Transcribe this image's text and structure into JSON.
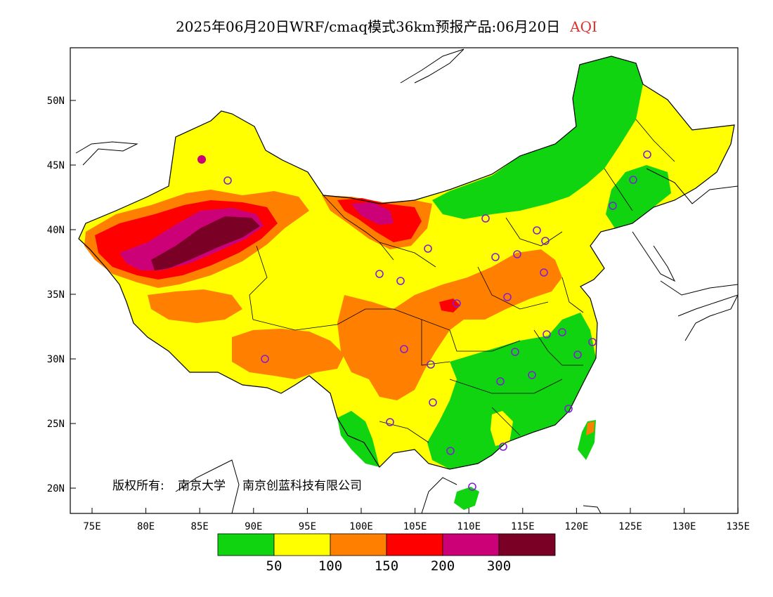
{
  "title": {
    "main": "2025年06月20日WRF/cmaq模式36km预报产品:06月20日",
    "variable": "AQI"
  },
  "lat_labels": [
    "50N",
    "45N",
    "40N",
    "35N",
    "30N",
    "25N",
    "20N"
  ],
  "lon_labels": [
    "75E",
    "80E",
    "85E",
    "90E",
    "95E",
    "100E",
    "105E",
    "110E",
    "115E",
    "120E",
    "125E",
    "130E",
    "135E"
  ],
  "copyright": {
    "owner_label": "版权所有:",
    "owner1": "南京大学",
    "owner2": "南京创蓝科技有限公司"
  },
  "legend": {
    "colors": [
      "#11d411",
      "#ffff00",
      "#ff8000",
      "#ff0000",
      "#cc0077",
      "#7a0026"
    ],
    "labels": [
      "50",
      "100",
      "150",
      "200",
      "300"
    ]
  },
  "map_colors": {
    "good": "#11d411",
    "moderate": "#ffff00",
    "sensitive": "#ff8000",
    "unhealthy": "#ff0000",
    "very_unhealthy": "#cc0077",
    "hazardous": "#7a0026",
    "station_marker": "#8020d0"
  }
}
